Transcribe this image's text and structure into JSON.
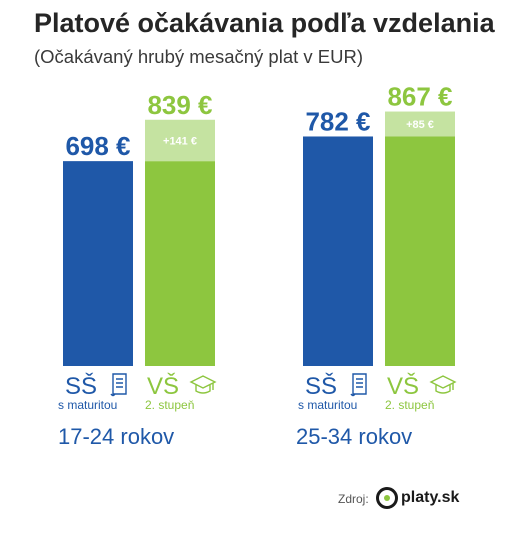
{
  "title": "Platové očakávania podľa vzdelania",
  "subtitle": "(Očakávaný hrubý mesačný plat v EUR)",
  "colors": {
    "ss": "#1f58a8",
    "vs": "#8dc63f",
    "vs_diff": "#c5e3a1",
    "text": "#262626"
  },
  "education_labels": {
    "ss_abbr": "SŠ",
    "ss_sub": "s maturitou",
    "ss_icon": "diploma-scroll-icon",
    "vs_abbr": "VŠ",
    "vs_sub": "2. stupeň",
    "vs_icon": "graduation-cap-icon"
  },
  "chart_data": {
    "type": "bar",
    "categories": [
      "17-24 rokov",
      "25-34 rokov"
    ],
    "series": [
      {
        "name": "SŠ s maturitou",
        "values": [
          698,
          782
        ],
        "labels": [
          "698 €",
          "782 €"
        ]
      },
      {
        "name": "VŠ 2. stupeň",
        "values": [
          839,
          867
        ],
        "labels": [
          "839 €",
          "867 €"
        ]
      }
    ],
    "differences": [
      141,
      85
    ],
    "difference_labels": [
      "+141 €",
      "+85 €"
    ],
    "title": "Platové očakávania podľa vzdelania",
    "subtitle": "(Očakávaný hrubý mesačný plat v EUR)",
    "xlabel": "",
    "ylabel": "",
    "grid": false,
    "legend": "none"
  },
  "footer": {
    "source_label": "Zdroj:",
    "logo_text": "platy.sk"
  }
}
